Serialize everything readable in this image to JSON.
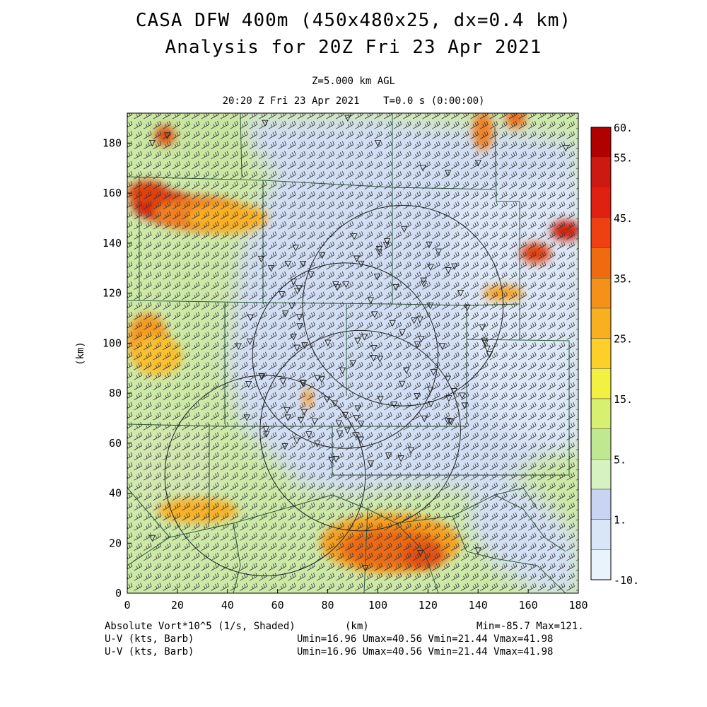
{
  "header": {
    "title": "CASA DFW 400m (450x480x25, dx=0.4 km)",
    "subtitle": "Analysis for 20Z Fri 23 Apr 2021",
    "level": "Z=5.000 km AGL",
    "valid_time": "20:20 Z Fri 23 Apr 2021    T=0.0 s (0:00:00)"
  },
  "axes": {
    "x_ticks": [
      "0",
      "20",
      "40",
      "60",
      "80",
      "100",
      "120",
      "140",
      "160",
      "180"
    ],
    "y_ticks": [
      "0",
      "20",
      "40",
      "60",
      "80",
      "100",
      "120",
      "140",
      "160",
      "180"
    ],
    "y_label": "(km)",
    "x_label": "(km)",
    "xlim": [
      0,
      180
    ],
    "ylim": [
      0,
      192
    ]
  },
  "colorbar": {
    "labels": [
      "60.",
      "55.",
      "45.",
      "35.",
      "25.",
      "15.",
      "5.",
      "1.",
      "-10."
    ],
    "colors": [
      "#b00000",
      "#cc1a10",
      "#e02010",
      "#ee4010",
      "#f06a10",
      "#f59018",
      "#f8b020",
      "#fcd028",
      "#f2f040",
      "#d8f070",
      "#bfe890",
      "#d6f2c0",
      "#c8d4f2",
      "#d8e6f8",
      "#e8f3fc"
    ]
  },
  "footer": {
    "field": "Absolute Vort*10^5 (1/s, Shaded)",
    "xunit": "(km)",
    "minmax": "Min=-85.7 Max=121.",
    "barb1_name": "U-V (kts, Barb)",
    "barb1_stats": "Umin=16.96 Umax=40.56 Vmin=21.44 Vmax=41.98",
    "barb2_name": "U-V (kts, Barb)",
    "barb2_stats": "Umin=16.96 Umax=40.56 Vmin=21.44 Vmax=41.98"
  },
  "map_data": {
    "radar_rings": [
      {
        "cx": 110,
        "cy": 115,
        "r": 40
      },
      {
        "cx": 87,
        "cy": 95,
        "r": 37
      },
      {
        "cx": 93,
        "cy": 65,
        "r": 40
      },
      {
        "cx": 55,
        "cy": 47,
        "r": 40
      }
    ],
    "vorticity_blobs": [
      {
        "x": 14,
        "y": 155,
        "rx": 12,
        "ry": 6,
        "color": "#d02010"
      },
      {
        "x": 8,
        "y": 160,
        "rx": 8,
        "ry": 5,
        "color": "#e04010"
      },
      {
        "x": 28,
        "y": 152,
        "rx": 18,
        "ry": 7,
        "color": "#f08020"
      },
      {
        "x": 40,
        "y": 150,
        "rx": 16,
        "ry": 6,
        "color": "#f8b028"
      },
      {
        "x": 15,
        "y": 183,
        "rx": 4,
        "ry": 4,
        "color": "#e05010"
      },
      {
        "x": 8,
        "y": 102,
        "rx": 8,
        "ry": 10,
        "color": "#f49a20"
      },
      {
        "x": 12,
        "y": 95,
        "rx": 10,
        "ry": 8,
        "color": "#f8c030"
      },
      {
        "x": 28,
        "y": 33,
        "rx": 16,
        "ry": 5,
        "color": "#f8b028"
      },
      {
        "x": 105,
        "y": 20,
        "rx": 28,
        "ry": 12,
        "color": "#f4a020"
      },
      {
        "x": 105,
        "y": 18,
        "rx": 20,
        "ry": 8,
        "color": "#ea6a18"
      },
      {
        "x": 118,
        "y": 15,
        "rx": 8,
        "ry": 5,
        "color": "#e05018"
      },
      {
        "x": 72,
        "y": 78,
        "rx": 2,
        "ry": 4,
        "color": "#f8a030"
      },
      {
        "x": 163,
        "y": 136,
        "rx": 6,
        "ry": 4,
        "color": "#e04010"
      },
      {
        "x": 175,
        "y": 145,
        "rx": 6,
        "ry": 4,
        "color": "#d02010"
      },
      {
        "x": 142,
        "y": 185,
        "rx": 4,
        "ry": 8,
        "color": "#f08020"
      },
      {
        "x": 155,
        "y": 190,
        "rx": 4,
        "ry": 4,
        "color": "#ee6a18"
      },
      {
        "x": 150,
        "y": 120,
        "rx": 8,
        "ry": 3,
        "color": "#f6a020"
      }
    ]
  }
}
